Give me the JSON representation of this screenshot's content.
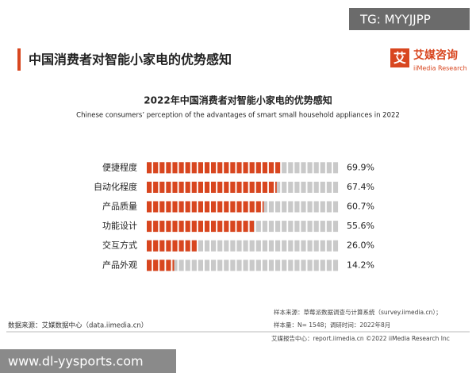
{
  "header": {
    "title": "中国消费者对智能小家电的优势感知",
    "logo_icon": "艾",
    "logo_name": "艾媒咨询",
    "logo_en": "iiMedia Research"
  },
  "watermark_top": "TG: MYYJJPP",
  "chart_data": {
    "type": "segmented-bar",
    "title": "2022年中国消费者对智能小家电的优势感知",
    "subtitle": "Chinese consumers’ perception of the advantages of smart small household appliances in 2022",
    "categories": [
      "便捷程度",
      "自动化程度",
      "产品质量",
      "功能设计",
      "交互方式",
      "产品外观"
    ],
    "values": [
      69.9,
      67.4,
      60.7,
      55.6,
      26.0,
      14.2
    ],
    "value_labels": [
      "69.9%",
      "67.4%",
      "60.7%",
      "55.6%",
      "26.0%",
      "14.2%"
    ],
    "color": "#d8461f",
    "track_color": "#c9c9c9",
    "xlim": [
      0,
      100
    ]
  },
  "source": "数据来源：艾媒数据中心（data.iimedia.cn）",
  "sample_notes": [
    "样本来源：草莓派数据调查与计算系统（survey.iimedia.cn）；",
    "样本量：N= 1548；调研时间：2022年8月"
  ],
  "footer": "艾媒报告中心：report.iimedia.cn  ©2022  iiMedia Research  Inc",
  "watermark_bottom": "www.dl-yysports.com"
}
